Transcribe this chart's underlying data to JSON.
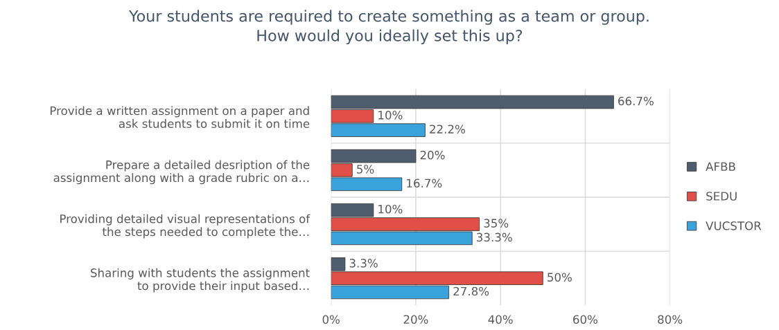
{
  "chart_data": {
    "type": "bar",
    "orientation": "horizontal",
    "title": "Your students are required to create something as a team or group.\nHow would you ideally set this up?",
    "categories": [
      "Provide a written assignment on a paper and\nask students to submit it on time",
      "Prepare a detailed desription of the\nassignment along with a grade rubric on a…",
      "Providing detailed visual representations of\nthe steps needed to complete the…",
      "Sharing with students the assignment\nto provide their input based…"
    ],
    "series": [
      {
        "name": "AFBB",
        "color": "#4f5d6e",
        "values": [
          66.7,
          20,
          10,
          3.3
        ],
        "value_labels": [
          "66.7%",
          "20%",
          "10%",
          "3.3%"
        ]
      },
      {
        "name": "SEDU",
        "color": "#e05048",
        "values": [
          10,
          5,
          35,
          50
        ],
        "value_labels": [
          "10%",
          "5%",
          "35%",
          "50%"
        ]
      },
      {
        "name": "VUCSTOR",
        "color": "#3ba3dc",
        "values": [
          22.2,
          16.7,
          33.3,
          27.8
        ],
        "value_labels": [
          "22.2%",
          "16.7%",
          "33.3%",
          "27.8%"
        ]
      }
    ],
    "xlim": [
      0,
      80
    ],
    "xticks": [
      {
        "value": 0,
        "label": "0%"
      },
      {
        "value": 20,
        "label": "20%"
      },
      {
        "value": 40,
        "label": "40%"
      },
      {
        "value": 60,
        "label": "60%"
      },
      {
        "value": 80,
        "label": "80%"
      }
    ],
    "grid": "x",
    "legend": "right"
  }
}
